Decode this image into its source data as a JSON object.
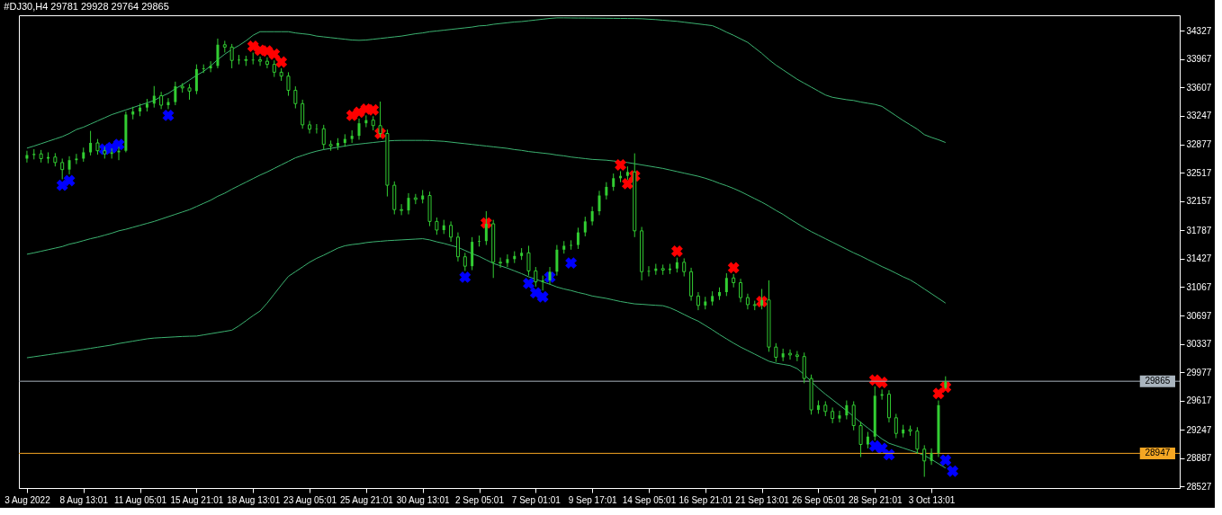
{
  "chart_data": {
    "type": "candlestick",
    "title": "#DJ30,H4  29781 29928 29764 29865",
    "color": "#32cd32",
    "categories": [
      "3 Aug 2022",
      null,
      null,
      null,
      null,
      null,
      null,
      null,
      "8 Aug 13:01",
      null,
      null,
      null,
      null,
      null,
      null,
      null,
      "11 Aug 05:01",
      null,
      null,
      null,
      null,
      null,
      null,
      null,
      "15 Aug 21:01",
      null,
      null,
      null,
      null,
      null,
      null,
      null,
      "18 Aug 13:01",
      null,
      null,
      null,
      null,
      null,
      null,
      null,
      "23 Aug 05:01",
      null,
      null,
      null,
      null,
      null,
      null,
      null,
      "25 Aug 21:01",
      null,
      null,
      null,
      null,
      null,
      null,
      null,
      "30 Aug 13:01",
      null,
      null,
      null,
      null,
      null,
      null,
      null,
      "2 Sep 05:01",
      null,
      null,
      null,
      null,
      null,
      null,
      null,
      "7 Sep 01:01",
      null,
      null,
      null,
      null,
      null,
      null,
      null,
      "9 Sep 17:01",
      null,
      null,
      null,
      null,
      null,
      null,
      null,
      "14 Sep 05:01",
      null,
      null,
      null,
      null,
      null,
      null,
      null,
      "16 Sep 21:01",
      null,
      null,
      null,
      null,
      null,
      null,
      null,
      "21 Sep 13:01",
      null,
      null,
      null,
      null,
      null,
      null,
      null,
      "26 Sep 05:01",
      null,
      null,
      null,
      null,
      null,
      null,
      null,
      "28 Sep 21:01",
      null,
      null,
      null,
      null,
      null,
      null,
      null,
      "3 Oct 13:01",
      null,
      null,
      null,
      null,
      null,
      null,
      null,
      null,
      null,
      null,
      null,
      null,
      null,
      null,
      null,
      null,
      null,
      null,
      null,
      null,
      null,
      null,
      null,
      null,
      null,
      null,
      null,
      null,
      null,
      null,
      null,
      null,
      null,
      null
    ],
    "ohlc": [
      [
        32700,
        32800,
        32650,
        32745
      ],
      [
        32745,
        32820,
        32690,
        32760
      ],
      [
        32760,
        32810,
        32650,
        32700
      ],
      [
        32700,
        32780,
        32640,
        32720
      ],
      [
        32720,
        32770,
        32600,
        32650
      ],
      [
        32650,
        32700,
        32437,
        32560
      ],
      [
        32560,
        32730,
        32500,
        32680
      ],
      [
        32680,
        32760,
        32630,
        32700
      ],
      [
        32700,
        32840,
        32660,
        32780
      ],
      [
        32780,
        33053,
        32740,
        32900
      ],
      [
        32900,
        32950,
        32750,
        32800
      ],
      [
        32800,
        32850,
        32700,
        32760
      ],
      [
        32760,
        32830,
        32700,
        32780
      ],
      [
        32780,
        32850,
        32680,
        32800
      ],
      [
        32800,
        33300,
        32780,
        33261
      ],
      [
        33261,
        33360,
        33200,
        33300
      ],
      [
        33300,
        33400,
        33240,
        33350
      ],
      [
        33350,
        33460,
        33300,
        33400
      ],
      [
        33400,
        33624,
        33350,
        33500
      ],
      [
        33500,
        33550,
        33330,
        33380
      ],
      [
        33380,
        33470,
        33330,
        33420
      ],
      [
        33420,
        33680,
        33380,
        33620
      ],
      [
        33620,
        33660,
        33540,
        33600
      ],
      [
        33600,
        33650,
        33450,
        33560
      ],
      [
        33560,
        33900,
        33520,
        33840
      ],
      [
        33840,
        33900,
        33790,
        33850
      ],
      [
        33850,
        33940,
        33800,
        33880
      ],
      [
        33880,
        34228,
        33850,
        34150
      ],
      [
        34150,
        34200,
        34050,
        34120
      ],
      [
        34120,
        34160,
        33850,
        33950
      ],
      [
        33950,
        34020,
        33900,
        33960
      ],
      [
        33960,
        34010,
        33880,
        33950
      ],
      [
        33950,
        34050,
        33900,
        33960
      ],
      [
        33960,
        34000,
        33880,
        33940
      ],
      [
        33940,
        33990,
        33850,
        33900
      ],
      [
        33900,
        33950,
        33740,
        33800
      ],
      [
        33800,
        33850,
        33690,
        33750
      ],
      [
        33750,
        33800,
        33500,
        33570
      ],
      [
        33570,
        33620,
        33340,
        33400
      ],
      [
        33400,
        33450,
        33080,
        33130
      ],
      [
        33130,
        33180,
        33020,
        33075
      ],
      [
        33075,
        33140,
        33020,
        33080
      ],
      [
        33080,
        33130,
        32820,
        32880
      ],
      [
        32880,
        32930,
        32800,
        32860
      ],
      [
        32860,
        32960,
        32810,
        32900
      ],
      [
        32900,
        33010,
        32850,
        32950
      ],
      [
        32950,
        33060,
        32900,
        32990
      ],
      [
        32990,
        33210,
        32940,
        33150
      ],
      [
        33150,
        33250,
        33100,
        33190
      ],
      [
        33190,
        33240,
        33060,
        33120
      ],
      [
        33120,
        33426,
        32970,
        33020
      ],
      [
        33020,
        33070,
        32218,
        32361
      ],
      [
        32361,
        32410,
        31990,
        32050
      ],
      [
        32050,
        32120,
        31980,
        32040
      ],
      [
        32040,
        32260,
        31990,
        32200
      ],
      [
        32200,
        32250,
        32120,
        32180
      ],
      [
        32180,
        32300,
        32130,
        32230
      ],
      [
        32230,
        32280,
        31840,
        31900
      ],
      [
        31900,
        31950,
        31730,
        31790
      ],
      [
        31790,
        31920,
        31740,
        31850
      ],
      [
        31850,
        31900,
        31640,
        31700
      ],
      [
        31700,
        31760,
        31390,
        31450
      ],
      [
        31450,
        31500,
        31270,
        31330
      ],
      [
        31330,
        31700,
        31280,
        31640
      ],
      [
        31640,
        31720,
        31580,
        31650
      ],
      [
        31650,
        32031,
        31600,
        31870
      ],
      [
        31870,
        31920,
        31180,
        31380
      ],
      [
        31380,
        31440,
        31310,
        31370
      ],
      [
        31370,
        31480,
        31320,
        31420
      ],
      [
        31420,
        31520,
        31370,
        31460
      ],
      [
        31460,
        31560,
        31410,
        31500
      ],
      [
        31500,
        31590,
        31210,
        31270
      ],
      [
        31270,
        31320,
        31070,
        31130
      ],
      [
        31130,
        31210,
        31020,
        31150
      ],
      [
        31150,
        31320,
        31100,
        31260
      ],
      [
        31260,
        31600,
        31210,
        31540
      ],
      [
        31540,
        31650,
        31490,
        31590
      ],
      [
        31590,
        31660,
        31540,
        31600
      ],
      [
        31600,
        31820,
        31550,
        31760
      ],
      [
        31760,
        31960,
        31710,
        31900
      ],
      [
        31900,
        32090,
        31850,
        32030
      ],
      [
        32030,
        32290,
        31980,
        32230
      ],
      [
        32230,
        32400,
        32180,
        32340
      ],
      [
        32340,
        32510,
        32290,
        32450
      ],
      [
        32450,
        32540,
        32400,
        32480
      ],
      [
        32480,
        32600,
        32430,
        32530
      ],
      [
        32530,
        32767,
        31700,
        31780
      ],
      [
        31780,
        31830,
        31150,
        31260
      ],
      [
        31260,
        31330,
        31200,
        31270
      ],
      [
        31270,
        31360,
        31220,
        31300
      ],
      [
        31300,
        31350,
        31220,
        31280
      ],
      [
        31280,
        31360,
        31230,
        31300
      ],
      [
        31300,
        31440,
        31250,
        31380
      ],
      [
        31380,
        31430,
        31200,
        31260
      ],
      [
        31260,
        31310,
        30890,
        30950
      ],
      [
        30950,
        31000,
        30770,
        30830
      ],
      [
        30830,
        30940,
        30780,
        30880
      ],
      [
        30880,
        31010,
        30830,
        30950
      ],
      [
        30950,
        31060,
        30900,
        31000
      ],
      [
        31000,
        31240,
        30950,
        31180
      ],
      [
        31180,
        31230,
        31060,
        31120
      ],
      [
        31120,
        31170,
        30870,
        30930
      ],
      [
        30930,
        30980,
        30780,
        30840
      ],
      [
        30840,
        30890,
        30770,
        30830
      ],
      [
        30830,
        31040,
        30780,
        30900
      ],
      [
        30900,
        31150,
        30240,
        30300
      ],
      [
        30300,
        30350,
        30110,
        30170
      ],
      [
        30170,
        30280,
        30120,
        30220
      ],
      [
        30220,
        30270,
        30140,
        30200
      ],
      [
        30200,
        30250,
        30120,
        30180
      ],
      [
        30180,
        30230,
        29840,
        29900
      ],
      [
        29900,
        29950,
        29440,
        29500
      ],
      [
        29500,
        29620,
        29450,
        29560
      ],
      [
        29560,
        29610,
        29420,
        29480
      ],
      [
        29480,
        29530,
        29330,
        29390
      ],
      [
        29390,
        29490,
        29340,
        29430
      ],
      [
        29430,
        29620,
        29380,
        29560
      ],
      [
        29560,
        29610,
        29240,
        29300
      ],
      [
        29300,
        29350,
        28900,
        29060
      ],
      [
        29060,
        29220,
        29010,
        29160
      ],
      [
        29160,
        29800,
        29110,
        29680
      ],
      [
        29680,
        29760,
        29630,
        29700
      ],
      [
        29700,
        29750,
        29340,
        29400
      ],
      [
        29400,
        29450,
        29140,
        29200
      ],
      [
        29200,
        29310,
        29150,
        29250
      ],
      [
        29250,
        29300,
        29170,
        29230
      ],
      [
        29230,
        29280,
        28940,
        29000
      ],
      [
        29000,
        29050,
        28648,
        28850
      ],
      [
        28850,
        29010,
        28800,
        28950
      ],
      [
        28950,
        29620,
        28900,
        29560
      ],
      [
        29781,
        29928,
        29764,
        29865
      ],
      null,
      null,
      null,
      null,
      null,
      null,
      null,
      null,
      null,
      null,
      null,
      null,
      null,
      null,
      null,
      null,
      null,
      null,
      null,
      null,
      null,
      null,
      null,
      null,
      null,
      null,
      null,
      null,
      null,
      null,
      null,
      null
    ],
    "series": [
      {
        "type": "line",
        "color": "#3cb371",
        "values": [
          32833,
          32860,
          32890,
          32920,
          32950,
          32980,
          33020,
          33070,
          33100,
          33140,
          33180,
          33220,
          33260,
          33290,
          33320,
          33350,
          33380,
          33410,
          33440,
          33490,
          33530,
          33590,
          33640,
          33700,
          33760,
          33810,
          33880,
          33960,
          34030,
          34090,
          34140,
          34200,
          34270,
          34316,
          34316,
          34316,
          34316,
          34316,
          34300,
          34290,
          34280,
          34260,
          34250,
          34240,
          34230,
          34220,
          34210,
          34206,
          34210,
          34220,
          34230,
          34240,
          34250,
          34260,
          34275,
          34290,
          34300,
          34316,
          34325,
          34335,
          34345,
          34355,
          34365,
          34375,
          34390,
          34395,
          34410,
          34420,
          34430,
          34440,
          34445,
          34455,
          34465,
          34475,
          34485,
          34492,
          34492,
          34491,
          34490,
          34490,
          34489,
          34488,
          34487,
          34486,
          34485,
          34484,
          34483,
          34481,
          34475,
          34470,
          34462,
          34455,
          34448,
          34437,
          34426,
          34415,
          34404,
          34393,
          34355,
          34310,
          34270,
          34225,
          34180,
          34110,
          34040,
          33960,
          33890,
          33830,
          33770,
          33710,
          33660,
          33610,
          33560,
          33510,
          33480,
          33465,
          33450,
          33440,
          33420,
          33405,
          33390,
          33365,
          33305,
          33245,
          33185,
          33130,
          33075,
          33005,
          32970,
          32940,
          32905,
          null,
          null,
          null,
          null,
          null,
          null,
          null,
          null,
          null,
          null,
          null,
          null,
          null,
          null,
          null,
          null,
          null,
          null,
          null,
          null,
          null,
          null,
          null,
          null,
          null,
          null,
          null,
          null,
          null,
          null,
          null,
          null
        ]
      },
      {
        "type": "line",
        "color": "#3cb371",
        "values": [
          31482,
          31500,
          31520,
          31540,
          31560,
          31580,
          31610,
          31630,
          31655,
          31680,
          31700,
          31725,
          31750,
          31780,
          31800,
          31825,
          31850,
          31875,
          31900,
          31930,
          31960,
          31990,
          32020,
          32050,
          32090,
          32130,
          32170,
          32220,
          32260,
          32310,
          32355,
          32400,
          32445,
          32490,
          32530,
          32575,
          32620,
          32665,
          32710,
          32740,
          32770,
          32795,
          32815,
          32830,
          32845,
          32860,
          32875,
          32885,
          32895,
          32905,
          32915,
          32925,
          32930,
          32932,
          32932,
          32932,
          32932,
          32930,
          32925,
          32920,
          32910,
          32900,
          32890,
          32880,
          32870,
          32860,
          32850,
          32840,
          32830,
          32815,
          32805,
          32790,
          32780,
          32770,
          32760,
          32745,
          32735,
          32720,
          32710,
          32700,
          32690,
          32685,
          32680,
          32670,
          32660,
          32650,
          32635,
          32620,
          32605,
          32590,
          32575,
          32555,
          32535,
          32515,
          32495,
          32475,
          32450,
          32420,
          32385,
          32355,
          32320,
          32280,
          32235,
          32190,
          32145,
          32095,
          32040,
          31990,
          31930,
          31875,
          31820,
          31770,
          31725,
          31680,
          31635,
          31590,
          31545,
          31500,
          31460,
          31415,
          31370,
          31325,
          31285,
          31240,
          31195,
          31155,
          31100,
          31040,
          30980,
          30920,
          30860,
          null,
          null,
          null,
          null,
          null,
          null,
          null,
          null,
          null,
          null,
          null,
          null,
          null,
          null,
          null,
          null,
          null,
          null,
          null,
          null,
          null,
          null,
          null,
          null,
          null,
          null,
          null,
          null,
          null,
          null,
          null,
          null
        ]
      },
      {
        "type": "line",
        "color": "#3cb371",
        "values": [
          30164,
          30177,
          30190,
          30203,
          30216,
          30229,
          30242,
          30256,
          30270,
          30284,
          30298,
          30312,
          30326,
          30345,
          30360,
          30375,
          30390,
          30405,
          30415,
          30420,
          30425,
          30430,
          30435,
          30438,
          30440,
          30455,
          30470,
          30485,
          30500,
          30515,
          30570,
          30635,
          30700,
          30760,
          30860,
          30975,
          31090,
          31200,
          31260,
          31320,
          31380,
          31430,
          31470,
          31515,
          31560,
          31590,
          31605,
          31615,
          31630,
          31640,
          31647,
          31655,
          31660,
          31665,
          31670,
          31675,
          31680,
          31665,
          31640,
          31620,
          31595,
          31570,
          31530,
          31490,
          31455,
          31410,
          31365,
          31335,
          31305,
          31270,
          31235,
          31195,
          31165,
          31130,
          31100,
          31065,
          31040,
          31020,
          30995,
          30975,
          30950,
          30935,
          30920,
          30900,
          30880,
          30865,
          30850,
          30845,
          30838,
          30832,
          30827,
          30800,
          30760,
          30715,
          30670,
          30630,
          30575,
          30520,
          30460,
          30405,
          30350,
          30300,
          30255,
          30210,
          30165,
          30120,
          30095,
          30080,
          30065,
          30025,
          29950,
          29860,
          29775,
          29700,
          29630,
          29560,
          29490,
          29415,
          29340,
          29270,
          29200,
          29130,
          29075,
          29045,
          29015,
          28985,
          28955,
          28920,
          28870,
          28815,
          28760,
          null,
          null,
          null,
          null,
          null,
          null,
          null,
          null,
          null,
          null,
          null,
          null,
          null,
          null,
          null,
          null,
          null,
          null,
          null,
          null,
          null,
          null,
          null,
          null,
          null,
          null,
          null,
          null,
          null,
          null,
          null,
          null
        ]
      },
      {
        "type": "scatter",
        "color": "#ff0000",
        "marker": "cross",
        "values": [
          null,
          null,
          null,
          null,
          null,
          null,
          null,
          null,
          null,
          null,
          null,
          null,
          null,
          null,
          null,
          null,
          null,
          null,
          null,
          null,
          null,
          null,
          null,
          null,
          null,
          null,
          null,
          null,
          null,
          null,
          null,
          null,
          34130,
          34080,
          34070,
          34030,
          33930,
          null,
          null,
          null,
          null,
          null,
          null,
          null,
          null,
          null,
          33250,
          33290,
          33330,
          33320,
          33020,
          null,
          null,
          null,
          null,
          null,
          null,
          null,
          null,
          null,
          null,
          null,
          null,
          null,
          null,
          31880,
          null,
          null,
          null,
          null,
          null,
          null,
          null,
          null,
          null,
          null,
          null,
          null,
          null,
          null,
          null,
          null,
          null,
          null,
          32620,
          32380,
          32480,
          null,
          null,
          null,
          null,
          null,
          31520,
          null,
          null,
          null,
          null,
          null,
          null,
          null,
          31310,
          null,
          null,
          null,
          30880,
          null,
          null,
          null,
          null,
          null,
          null,
          null,
          null,
          null,
          null,
          null,
          null,
          null,
          null,
          null,
          29880,
          29850,
          null,
          null,
          null,
          null,
          null,
          null,
          null,
          29710,
          29790,
          null,
          null,
          null,
          null,
          null,
          null,
          null,
          null,
          null,
          null,
          null,
          null,
          null,
          null,
          null,
          null,
          null,
          null,
          null,
          null,
          null,
          null,
          null,
          null,
          null,
          null,
          null,
          null,
          null,
          null,
          null,
          null
        ]
      },
      {
        "type": "scatter",
        "color": "#0000ff",
        "marker": "cross",
        "values": [
          null,
          null,
          null,
          null,
          null,
          32360,
          32420,
          null,
          null,
          null,
          null,
          32820,
          32840,
          32880,
          null,
          null,
          null,
          null,
          null,
          null,
          33250,
          null,
          null,
          null,
          null,
          null,
          null,
          null,
          null,
          null,
          null,
          null,
          null,
          null,
          null,
          null,
          null,
          null,
          null,
          null,
          null,
          null,
          null,
          null,
          null,
          null,
          null,
          null,
          null,
          null,
          null,
          null,
          null,
          null,
          null,
          null,
          null,
          null,
          null,
          null,
          null,
          null,
          31190,
          null,
          null,
          null,
          null,
          null,
          null,
          null,
          null,
          31110,
          30990,
          30940,
          31190,
          null,
          null,
          31370,
          null,
          null,
          null,
          null,
          null,
          null,
          null,
          null,
          null,
          null,
          null,
          null,
          null,
          null,
          null,
          null,
          null,
          null,
          null,
          null,
          null,
          null,
          null,
          null,
          null,
          null,
          null,
          null,
          null,
          null,
          null,
          null,
          null,
          null,
          null,
          null,
          null,
          null,
          null,
          null,
          null,
          null,
          29040,
          29010,
          28930,
          null,
          null,
          null,
          null,
          null,
          null,
          null,
          28860,
          28720,
          null,
          null,
          null,
          null,
          null,
          null,
          null,
          null,
          null,
          null,
          null,
          null,
          null,
          null,
          null,
          null,
          null,
          null,
          null,
          null,
          null,
          null,
          null,
          null,
          null,
          null,
          null,
          null,
          null,
          null,
          null
        ]
      }
    ],
    "ref_lines": [
      {
        "axis": "y",
        "value": 29865,
        "label": "29865",
        "color": "#a9b4be"
      },
      {
        "axis": "y",
        "value": 28947,
        "label": "28947",
        "color": "#f5a623"
      }
    ],
    "ylim": [
      28505,
      34525
    ],
    "yticks": [
      34327,
      33967,
      33607,
      33247,
      32877,
      32517,
      32157,
      31787,
      31427,
      31067,
      30697,
      30337,
      29977,
      29617,
      29247,
      28887,
      28527
    ]
  }
}
